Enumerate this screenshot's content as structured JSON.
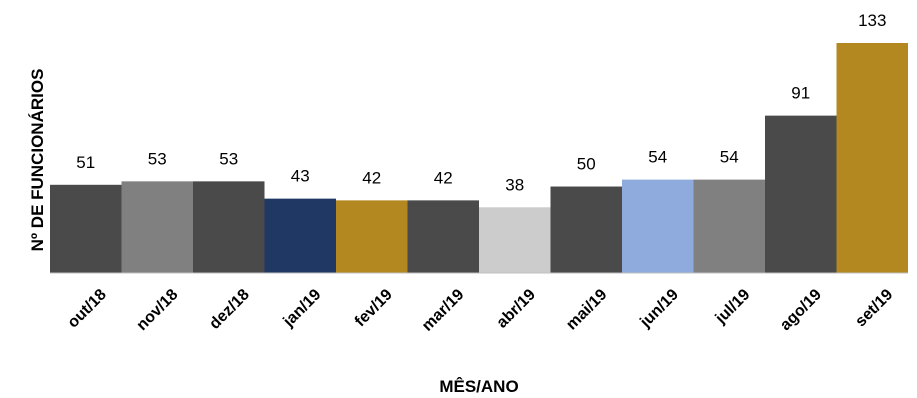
{
  "chart_data": {
    "type": "bar",
    "title": "",
    "xlabel": "MÊS/ANO",
    "ylabel": "Nº DE FUNCIONÁRIOS",
    "categories": [
      "out/18",
      "nov/18",
      "dez/18",
      "jan/19",
      "fev/19",
      "mar/19",
      "abr/19",
      "mai/19",
      "jun/19",
      "jul/19",
      "ago/19",
      "set/19"
    ],
    "values": [
      51,
      53,
      53,
      43,
      42,
      42,
      38,
      50,
      54,
      54,
      91,
      133
    ],
    "colors": [
      "#4a4a4a",
      "#808080",
      "#4a4a4a",
      "#203864",
      "#b38820",
      "#4a4a4a",
      "#cccccc",
      "#4a4a4a",
      "#8faadc",
      "#808080",
      "#4a4a4a",
      "#b38820"
    ],
    "ylim": [
      0,
      133
    ],
    "grid": false,
    "legend": "none",
    "data_labels": true
  }
}
